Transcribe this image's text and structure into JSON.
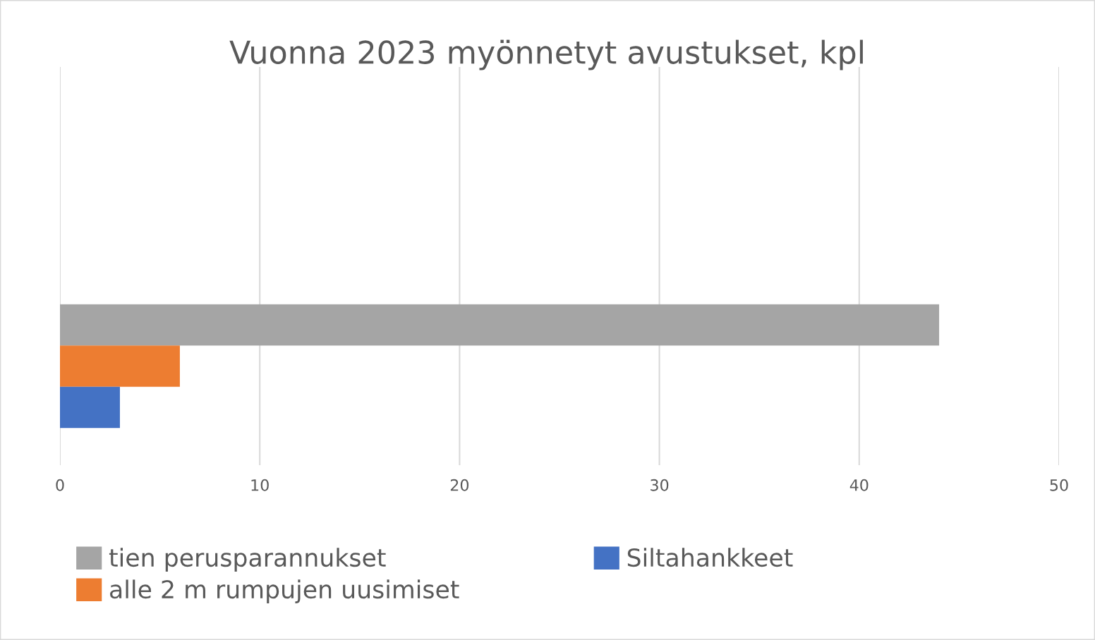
{
  "chart_data": {
    "type": "bar",
    "orientation": "horizontal",
    "title": "Vuonna 2023 myönnetyt avustukset, kpl",
    "categories": [
      null
    ],
    "series": [
      {
        "name": "tien perusparannukset",
        "color": "#a5a5a5",
        "values": [
          44
        ]
      },
      {
        "name": "alle 2 m rumpujen uusimiset",
        "color": "#ed7d31",
        "values": [
          6
        ]
      },
      {
        "name": "Siltahankkeet",
        "color": "#4472c4",
        "values": [
          3
        ]
      }
    ],
    "xlim": [
      0,
      50
    ],
    "xticks": [
      0,
      10,
      20,
      30,
      40,
      50
    ],
    "grid": "x",
    "legend": "bottom",
    "tick_labels": "x"
  }
}
